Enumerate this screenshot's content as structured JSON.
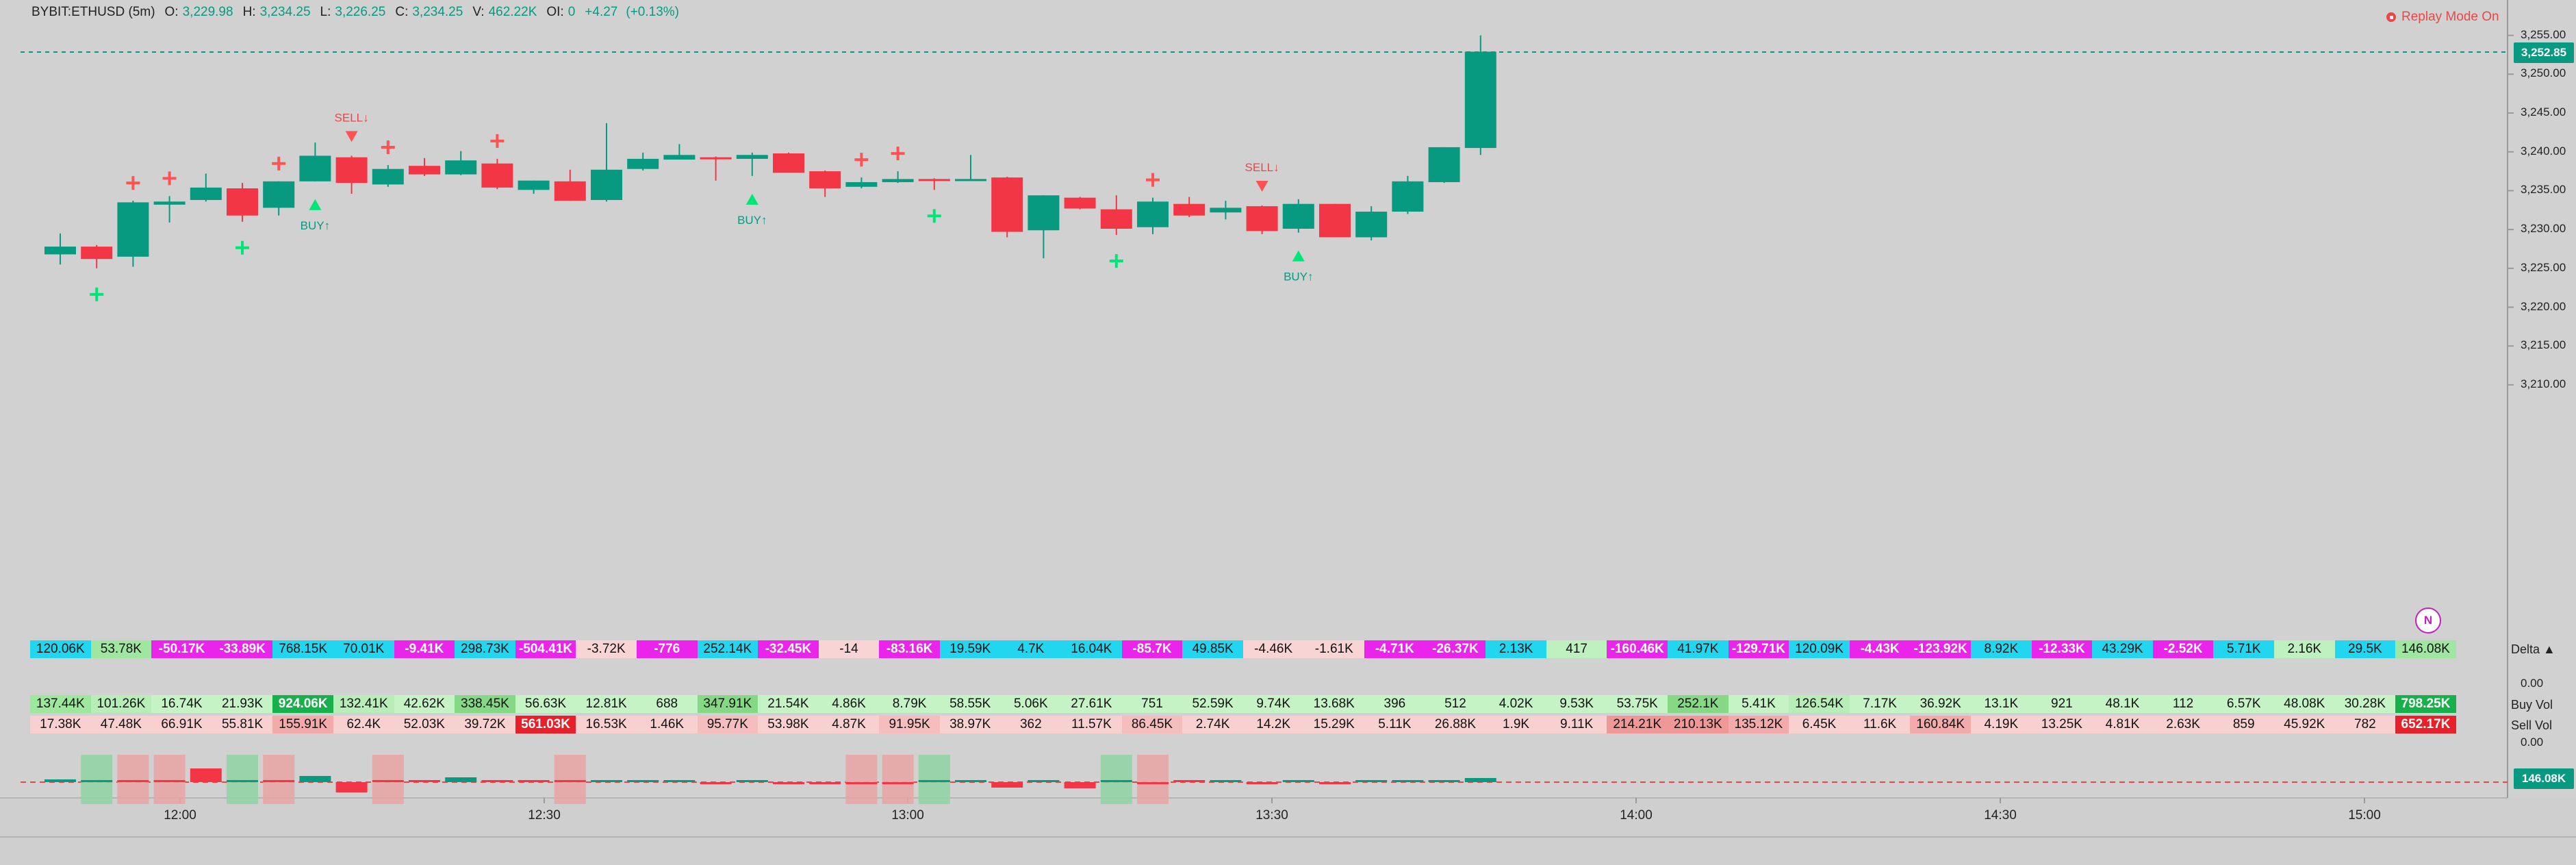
{
  "header": {
    "symbol": "BYBIT:ETHUSD (5m)",
    "open_label": "O:",
    "open": "3,229.98",
    "high_label": "H:",
    "high": "3,234.25",
    "low_label": "L:",
    "low": "3,226.25",
    "close_label": "C:",
    "close": "3,234.25",
    "volume_label": "V:",
    "volume": "462.22K",
    "oi_label": "OI:",
    "oi": "0",
    "change": "+4.27",
    "change_pct": "(+0.13%)"
  },
  "replay": {
    "label": "Replay Mode On"
  },
  "price_axis": {
    "ticks": [
      "3,255.00",
      "3,250.00",
      "3,245.00",
      "3,240.00",
      "3,235.00",
      "3,230.00",
      "3,225.00",
      "3,220.00",
      "3,215.00",
      "3,210.00"
    ],
    "current_price": "3,252.85"
  },
  "delta_axis": {
    "ticks": [
      "0.00",
      "0.00"
    ],
    "current_delta": "146.08K"
  },
  "time_axis": {
    "labels": [
      "12:00",
      "12:30",
      "13:00",
      "13:30",
      "14:00",
      "14:30",
      "15:00"
    ]
  },
  "indicator": {
    "badge": "N"
  },
  "row_labels": {
    "delta": "Delta ▲",
    "buy": "Buy Vol",
    "sell": "Sell Vol"
  },
  "colors": {
    "up": "#089981",
    "down": "#f23645",
    "signal_plus_up": "#00e676",
    "signal_plus_down": "#ff5252"
  },
  "chart_data": {
    "type": "candlestick",
    "candles": [
      [
        3226.8,
        3229.5,
        3225.5,
        3227.8
      ],
      [
        3227.8,
        3228.0,
        3225.0,
        3226.2
      ],
      [
        3226.5,
        3233.7,
        3225.2,
        3233.5
      ],
      [
        3233.2,
        3234.3,
        3230.9,
        3233.6
      ],
      [
        3233.8,
        3237.2,
        3233.6,
        3235.4
      ],
      [
        3235.3,
        3236.0,
        3231.0,
        3231.8
      ],
      [
        3232.8,
        3236.2,
        3231.8,
        3236.2
      ],
      [
        3236.2,
        3241.2,
        3236.2,
        3239.5
      ],
      [
        3239.3,
        3239.5,
        3234.6,
        3236.0
      ],
      [
        3235.8,
        3238.3,
        3235.5,
        3237.8
      ],
      [
        3238.2,
        3239.2,
        3236.9,
        3237.1
      ],
      [
        3237.1,
        3240.1,
        3237.0,
        3238.9
      ],
      [
        3238.5,
        3239.1,
        3235.2,
        3235.4
      ],
      [
        3235.1,
        3236.3,
        3234.6,
        3236.3
      ],
      [
        3236.2,
        3237.7,
        3233.7,
        3233.7
      ],
      [
        3233.8,
        3243.7,
        3233.6,
        3237.7
      ],
      [
        3237.8,
        3239.9,
        3237.6,
        3239.1
      ],
      [
        3239.0,
        3241.0,
        3239.0,
        3239.6
      ],
      [
        3239.3,
        3239.4,
        3236.3,
        3239.2
      ],
      [
        3239.1,
        3239.9,
        3236.9,
        3239.6
      ],
      [
        3239.8,
        3239.9,
        3237.4,
        3237.3
      ],
      [
        3237.5,
        3237.6,
        3234.2,
        3235.3
      ],
      [
        3235.5,
        3236.7,
        3235.3,
        3236.1
      ],
      [
        3236.1,
        3237.5,
        3236.0,
        3236.5
      ],
      [
        3236.5,
        3236.6,
        3235.1,
        3236.3
      ],
      [
        3236.3,
        3239.6,
        3236.3,
        3236.5
      ],
      [
        3236.7,
        3236.8,
        3229.0,
        3229.7
      ],
      [
        3229.9,
        3234.4,
        3226.3,
        3234.4
      ],
      [
        3234.1,
        3234.2,
        3232.6,
        3232.7
      ],
      [
        3232.6,
        3234.4,
        3229.3,
        3230.1
      ],
      [
        3230.3,
        3234.1,
        3229.4,
        3233.6
      ],
      [
        3233.3,
        3234.2,
        3231.6,
        3231.8
      ],
      [
        3232.2,
        3233.7,
        3231.3,
        3232.8
      ],
      [
        3233.0,
        3233.1,
        3229.4,
        3229.8
      ],
      [
        3230.1,
        3233.9,
        3229.6,
        3233.3
      ],
      [
        3233.3,
        3233.3,
        3229.0,
        3229.0
      ],
      [
        3229.0,
        3233.0,
        3228.6,
        3232.3
      ],
      [
        3232.3,
        3236.9,
        3232.0,
        3236.2
      ],
      [
        3236.1,
        3240.6,
        3236.0,
        3240.6
      ],
      [
        3240.5,
        3255.0,
        3239.6,
        3252.9
      ]
    ],
    "signals": [
      {
        "i": 1,
        "kind": "plus_up"
      },
      {
        "i": 2,
        "kind": "plus_down"
      },
      {
        "i": 3,
        "kind": "plus_down"
      },
      {
        "i": 5,
        "kind": "plus_up"
      },
      {
        "i": 6,
        "kind": "plus_down"
      },
      {
        "i": 7,
        "kind": "buy",
        "label": "BUY↑"
      },
      {
        "i": 8,
        "kind": "sell",
        "label": "SELL↓"
      },
      {
        "i": 9,
        "kind": "plus_down"
      },
      {
        "i": 12,
        "kind": "plus_down"
      },
      {
        "i": 19,
        "kind": "buy",
        "label": "BUY↑"
      },
      {
        "i": 22,
        "kind": "plus_down"
      },
      {
        "i": 23,
        "kind": "plus_down"
      },
      {
        "i": 24,
        "kind": "plus_up"
      },
      {
        "i": 29,
        "kind": "plus_up"
      },
      {
        "i": 30,
        "kind": "plus_down"
      },
      {
        "i": 33,
        "kind": "sell",
        "label": "SELL↓"
      },
      {
        "i": 34,
        "kind": "buy",
        "label": "BUY↑"
      }
    ],
    "delta_hist": [
      [
        "up",
        4
      ],
      [
        "up",
        0
      ],
      [
        "down",
        0
      ],
      [
        "down",
        0
      ],
      [
        "down",
        20
      ],
      [
        "up",
        0
      ],
      [
        "down",
        0
      ],
      [
        "up",
        9
      ],
      [
        "down",
        -15
      ],
      [
        "down",
        0
      ],
      [
        "down",
        2
      ],
      [
        "up",
        7
      ],
      [
        "down",
        2
      ],
      [
        "down",
        1
      ],
      [
        "down",
        0
      ],
      [
        "up",
        3
      ],
      [
        "up",
        2
      ],
      [
        "up",
        2
      ],
      [
        "down",
        -2
      ],
      [
        "up",
        3
      ],
      [
        "down",
        -1
      ],
      [
        "down",
        -1
      ],
      [
        "down",
        -3
      ],
      [
        "down",
        -2
      ],
      [
        "up",
        1
      ],
      [
        "up",
        1
      ],
      [
        "down",
        -8
      ],
      [
        "up",
        3
      ],
      [
        "down",
        -9
      ],
      [
        "up",
        0
      ],
      [
        "down",
        -3
      ],
      [
        "down",
        0
      ],
      [
        "up",
        1
      ],
      [
        "down",
        -3
      ],
      [
        "up",
        2
      ],
      [
        "down",
        -2
      ],
      [
        "up",
        1
      ],
      [
        "up",
        2
      ],
      [
        "up",
        1
      ],
      [
        "up",
        6
      ]
    ],
    "hist_bg": [
      null,
      "up",
      "down",
      "down",
      null,
      "up",
      "down",
      null,
      null,
      "down",
      null,
      null,
      null,
      null,
      "down",
      null,
      null,
      null,
      null,
      null,
      null,
      null,
      "down",
      "down",
      "up",
      null,
      null,
      null,
      null,
      "up",
      "down",
      null,
      null,
      null,
      null,
      null,
      null,
      null,
      null,
      null
    ]
  },
  "table": {
    "delta": [
      "120.06K",
      "53.78K",
      "-50.17K",
      "-33.89K",
      "768.15K",
      "70.01K",
      "-9.41K",
      "298.73K",
      "-504.41K",
      "-3.72K",
      "-776",
      "252.14K",
      "-32.45K",
      "-14",
      "-83.16K",
      "19.59K",
      "4.7K",
      "16.04K",
      "-85.7K",
      "49.85K",
      "-4.46K",
      "-1.61K",
      "-4.71K",
      "-26.37K",
      "2.13K",
      "417",
      "-160.46K",
      "41.97K",
      "-129.71K",
      "120.09K",
      "-4.43K",
      "-123.92K",
      "8.92K",
      "-12.33K",
      "43.29K",
      "-2.52K",
      "5.71K",
      "2.16K",
      "29.5K",
      "146.08K"
    ],
    "delta_color": [
      "#23d6f0",
      "#9fe7a1",
      "#ea24ea",
      "#ea24ea",
      "#23d6f0",
      "#23d6f0",
      "#ea24ea",
      "#23d6f0",
      "#ea24ea",
      "#f8d4d4",
      "#ea24ea",
      "#23d6f0",
      "#ea24ea",
      "#f8d4d4",
      "#ea24ea",
      "#23d6f0",
      "#23d6f0",
      "#23d6f0",
      "#ea24ea",
      "#23d6f0",
      "#f8d4d4",
      "#f8d4d4",
      "#ea24ea",
      "#ea24ea",
      "#23d6f0",
      "#bff0bf",
      "#ea24ea",
      "#23d6f0",
      "#ea24ea",
      "#23d6f0",
      "#ea24ea",
      "#ea24ea",
      "#23d6f0",
      "#ea24ea",
      "#23d6f0",
      "#ea24ea",
      "#23d6f0",
      "#bff0bf",
      "#23d6f0",
      "#9fe7a1"
    ],
    "delta_fg": [
      "d",
      "d",
      "w",
      "w",
      "d",
      "d",
      "w",
      "d",
      "w",
      "d",
      "w",
      "d",
      "w",
      "d",
      "w",
      "d",
      "d",
      "d",
      "w",
      "d",
      "d",
      "d",
      "w",
      "w",
      "d",
      "d",
      "w",
      "d",
      "w",
      "d",
      "w",
      "w",
      "d",
      "w",
      "d",
      "w",
      "d",
      "d",
      "d",
      "d"
    ],
    "buy": [
      "137.44K",
      "101.26K",
      "16.74K",
      "21.93K",
      "924.06K",
      "132.41K",
      "42.62K",
      "338.45K",
      "56.63K",
      "12.81K",
      "688",
      "347.91K",
      "21.54K",
      "4.86K",
      "8.79K",
      "58.55K",
      "5.06K",
      "27.61K",
      "751",
      "52.59K",
      "9.74K",
      "13.68K",
      "396",
      "512",
      "4.02K",
      "9.53K",
      "53.75K",
      "252.1K",
      "5.41K",
      "126.54K",
      "7.17K",
      "36.92K",
      "13.1K",
      "921",
      "48.1K",
      "112",
      "6.57K",
      "48.08K",
      "30.28K",
      "798.25K"
    ],
    "buy_color": [
      "#9ee89e",
      "#b7eeb7",
      "#c6f3c6",
      "#c6f3c6",
      "#18b04a",
      "#b7eeb7",
      "#c6f3c6",
      "#85d985",
      "#c6f3c6",
      "#c6f3c6",
      "#c6f3c6",
      "#85d985",
      "#c6f3c6",
      "#c6f3c6",
      "#c6f3c6",
      "#c6f3c6",
      "#c6f3c6",
      "#c6f3c6",
      "#c6f3c6",
      "#c6f3c6",
      "#c6f3c6",
      "#c6f3c6",
      "#c6f3c6",
      "#c6f3c6",
      "#c6f3c6",
      "#c6f3c6",
      "#c6f3c6",
      "#85d985",
      "#c6f3c6",
      "#b7eeb7",
      "#c6f3c6",
      "#c6f3c6",
      "#c6f3c6",
      "#c6f3c6",
      "#c6f3c6",
      "#c6f3c6",
      "#c6f3c6",
      "#c6f3c6",
      "#c6f3c6",
      "#18b04a"
    ],
    "buy_fg": [
      "d",
      "d",
      "d",
      "d",
      "w",
      "d",
      "d",
      "d",
      "d",
      "d",
      "d",
      "d",
      "d",
      "d",
      "d",
      "d",
      "d",
      "d",
      "d",
      "d",
      "d",
      "d",
      "d",
      "d",
      "d",
      "d",
      "d",
      "d",
      "d",
      "d",
      "d",
      "d",
      "d",
      "d",
      "d",
      "d",
      "d",
      "d",
      "d",
      "w"
    ],
    "sell": [
      "17.38K",
      "47.48K",
      "66.91K",
      "55.81K",
      "155.91K",
      "62.4K",
      "52.03K",
      "39.72K",
      "561.03K",
      "16.53K",
      "1.46K",
      "95.77K",
      "53.98K",
      "4.87K",
      "91.95K",
      "38.97K",
      "362",
      "11.57K",
      "86.45K",
      "2.74K",
      "14.2K",
      "15.29K",
      "5.11K",
      "26.88K",
      "1.9K",
      "9.11K",
      "214.21K",
      "210.13K",
      "135.12K",
      "6.45K",
      "11.6K",
      "160.84K",
      "4.19K",
      "13.25K",
      "4.81K",
      "2.63K",
      "859",
      "45.92K",
      "782",
      "652.17K"
    ],
    "sell_color": [
      "#f8d0d0",
      "#f8d0d0",
      "#f8d0d0",
      "#f8d0d0",
      "#f3aaaa",
      "#f8d0d0",
      "#f8d0d0",
      "#f8d0d0",
      "#e8202a",
      "#f8d0d0",
      "#f8d0d0",
      "#f5bdbd",
      "#f8d0d0",
      "#f8d0d0",
      "#f5bdbd",
      "#f8d0d0",
      "#f8d0d0",
      "#f8d0d0",
      "#f5bdbd",
      "#f8d0d0",
      "#f8d0d0",
      "#f8d0d0",
      "#f8d0d0",
      "#f8d0d0",
      "#f8d0d0",
      "#f8d0d0",
      "#f09898",
      "#f09898",
      "#f3aaaa",
      "#f8d0d0",
      "#f8d0d0",
      "#f3aaaa",
      "#f8d0d0",
      "#f8d0d0",
      "#f8d0d0",
      "#f8d0d0",
      "#f8d0d0",
      "#f8d0d0",
      "#f8d0d0",
      "#e8202a"
    ],
    "sell_fg": [
      "d",
      "d",
      "d",
      "d",
      "d",
      "d",
      "d",
      "d",
      "w",
      "d",
      "d",
      "d",
      "d",
      "d",
      "d",
      "d",
      "d",
      "d",
      "d",
      "d",
      "d",
      "d",
      "d",
      "d",
      "d",
      "d",
      "d",
      "d",
      "d",
      "d",
      "d",
      "d",
      "d",
      "d",
      "d",
      "d",
      "d",
      "d",
      "d",
      "w"
    ]
  }
}
